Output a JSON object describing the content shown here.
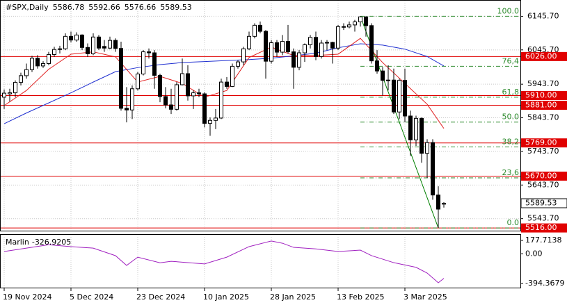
{
  "chart_data": {
    "type": "candlestick",
    "title": "#SPX,Daily",
    "categories": [
      "19 Nov 2024",
      null,
      null,
      null,
      null,
      null,
      null,
      null,
      null,
      null,
      null,
      null,
      "5 Dec 2024",
      null,
      null,
      null,
      null,
      null,
      null,
      null,
      null,
      null,
      null,
      null,
      "23 Dec 2024",
      null,
      null,
      null,
      null,
      null,
      null,
      null,
      null,
      null,
      null,
      null,
      "10 Jan 2025",
      null,
      null,
      null,
      null,
      null,
      null,
      null,
      null,
      null,
      null,
      null,
      "28 Jan 2025",
      null,
      null,
      null,
      null,
      null,
      null,
      null,
      null,
      null,
      null,
      null,
      "13 Feb 2025",
      null,
      null,
      null,
      null,
      null,
      null,
      null,
      null,
      null,
      null,
      null,
      "3 Mar 2025",
      null,
      null,
      null,
      null,
      null,
      null,
      null
    ],
    "candles": [
      [
        5905,
        5928,
        5870,
        5917
      ],
      [
        5915,
        5930,
        5892,
        5918
      ],
      [
        5918,
        5955,
        5905,
        5949
      ],
      [
        5949,
        5978,
        5940,
        5969
      ],
      [
        5969,
        6005,
        5960,
        5987
      ],
      [
        5987,
        6028,
        5980,
        6021
      ],
      [
        6021,
        6030,
        5990,
        5998
      ],
      [
        5998,
        6012,
        5992,
        6005
      ],
      [
        6005,
        6040,
        6000,
        6032
      ],
      [
        6032,
        6055,
        6025,
        6047
      ],
      [
        6047,
        6058,
        6035,
        6049
      ],
      [
        6049,
        6095,
        6045,
        6086
      ],
      [
        6086,
        6100,
        6068,
        6075
      ],
      [
        6075,
        6098,
        6070,
        6090
      ],
      [
        6090,
        6092,
        6045,
        6053
      ],
      [
        6053,
        6065,
        6025,
        6034
      ],
      [
        6034,
        6095,
        6030,
        6084
      ],
      [
        6084,
        6090,
        6045,
        6051
      ],
      [
        6056,
        6075,
        6040,
        6051
      ],
      [
        6051,
        6085,
        6048,
        6074
      ],
      [
        6074,
        6080,
        6040,
        6050
      ],
      [
        6050,
        6070,
        5865,
        5872
      ],
      [
        5872,
        5935,
        5830,
        5867
      ],
      [
        5867,
        5940,
        5840,
        5930
      ],
      [
        5930,
        5980,
        5925,
        5974
      ],
      [
        5974,
        6045,
        5970,
        6040
      ],
      [
        6040,
        6050,
        6020,
        6037
      ],
      [
        6037,
        6045,
        5930,
        5970
      ],
      [
        5970,
        5975,
        5890,
        5907
      ],
      [
        5907,
        5935,
        5872,
        5882
      ],
      [
        5882,
        5930,
        5855,
        5869
      ],
      [
        5869,
        5950,
        5865,
        5942
      ],
      [
        5942,
        6020,
        5940,
        5975
      ],
      [
        5975,
        6000,
        5895,
        5909
      ],
      [
        5909,
        5925,
        5870,
        5918
      ],
      [
        5918,
        5930,
        5905,
        5915
      ],
      [
        5915,
        5920,
        5815,
        5827
      ],
      [
        5827,
        5845,
        5790,
        5836
      ],
      [
        5836,
        5870,
        5810,
        5843
      ],
      [
        5843,
        5960,
        5840,
        5950
      ],
      [
        5950,
        5965,
        5930,
        5937
      ],
      [
        5937,
        6005,
        5935,
        5997
      ],
      [
        5997,
        6015,
        5990,
        6010
      ],
      [
        6010,
        6055,
        6000,
        6049
      ],
      [
        6049,
        6100,
        6045,
        6086
      ],
      [
        6086,
        6125,
        6080,
        6119
      ],
      [
        6119,
        6130,
        6095,
        6101
      ],
      [
        6101,
        6105,
        5960,
        6012
      ],
      [
        6012,
        6075,
        6005,
        6067
      ],
      [
        6067,
        6075,
        6025,
        6039
      ],
      [
        6039,
        6090,
        6030,
        6071
      ],
      [
        6071,
        6120,
        6035,
        6040
      ],
      [
        6040,
        6050,
        5930,
        5994
      ],
      [
        5994,
        6045,
        5985,
        6037
      ],
      [
        6037,
        6065,
        6010,
        6061
      ],
      [
        6061,
        6090,
        6050,
        6083
      ],
      [
        6083,
        6100,
        6015,
        6026
      ],
      [
        6026,
        6075,
        6020,
        6066
      ],
      [
        6066,
        6075,
        6045,
        6068
      ],
      [
        6068,
        6070,
        6005,
        6051
      ],
      [
        6051,
        6120,
        6045,
        6115
      ],
      [
        6115,
        6125,
        6105,
        6114
      ],
      [
        6114,
        6130,
        6110,
        6120
      ],
      [
        6120,
        6135,
        6100,
        6129
      ],
      [
        6129,
        6145.7,
        6115,
        6144
      ],
      [
        6144,
        6145,
        6085,
        6118
      ],
      [
        6118,
        6125,
        6005,
        6013
      ],
      [
        6013,
        6045,
        5975,
        5983
      ],
      [
        5983,
        5995,
        5910,
        5955
      ],
      [
        5955,
        6000,
        5925,
        5956
      ],
      [
        5956,
        5990,
        5855,
        5861
      ],
      [
        5861,
        5960,
        5840,
        5955
      ],
      [
        5955,
        5990,
        5830,
        5849
      ],
      [
        5849,
        5865,
        5730,
        5778
      ],
      [
        5778,
        5850,
        5760,
        5842
      ],
      [
        5842,
        5845,
        5710,
        5738
      ],
      [
        5738,
        5780,
        5665,
        5770
      ],
      [
        5770,
        5780,
        5600,
        5614
      ],
      [
        5614,
        5640,
        5516,
        5572
      ],
      [
        5586.78,
        5592.66,
        5576.66,
        5589.53
      ]
    ],
    "ylim": [
      5510,
      6190
    ],
    "yticks": [
      {
        "value": 6145.7,
        "label": "6145.70"
      },
      {
        "value": 6045.7,
        "label": "6045.70"
      },
      {
        "value": 5943.7,
        "label": "5943.70"
      },
      {
        "value": 5843.7,
        "label": "5843.70"
      },
      {
        "value": 5743.7,
        "label": "5743.70"
      },
      {
        "value": 5643.7,
        "label": "5643.70"
      },
      {
        "value": 5543.7,
        "label": "5543.70"
      }
    ],
    "grid": true,
    "levels": [
      {
        "value": 6026,
        "label": "6026.00"
      },
      {
        "value": 5910,
        "label": "5910.00"
      },
      {
        "value": 5881,
        "label": "5881.00"
      },
      {
        "value": 5769,
        "label": "5769.00"
      },
      {
        "value": 5670,
        "label": "5670.00"
      },
      {
        "value": 5516,
        "label": "5516.00"
      }
    ],
    "level_color": "#e00000",
    "fibonacci": {
      "color": "#2e8b2e",
      "start": 64,
      "levels": [
        {
          "label": "100.0",
          "value": 6145.7
        },
        {
          "label": "76,4",
          "value": 5997
        },
        {
          "label": "61,8",
          "value": 5905
        },
        {
          "label": "50.0",
          "value": 5831
        },
        {
          "label": "38,2",
          "value": 5757
        },
        {
          "label": "23,6",
          "value": 5665
        },
        {
          "label": "0.0",
          "value": 5516
        }
      ]
    },
    "trendline": {
      "color": "#008000",
      "x": [
        64,
        78
      ],
      "values": [
        6145.7,
        5516
      ]
    },
    "series": [
      {
        "color": "#1f2fd0",
        "x": [
          0,
          4,
          8,
          12,
          16,
          20,
          24,
          28,
          32,
          36,
          40,
          44,
          48,
          52,
          56,
          60,
          64,
          68,
          72,
          76,
          79
        ],
        "values": [
          5826,
          5858,
          5888,
          5918,
          5950,
          5981,
          5993,
          6002,
          6008,
          6011,
          6014,
          6017,
          6021,
          6028,
          6036,
          6052,
          6064,
          6060,
          6048,
          6026,
          5998
        ]
      },
      {
        "color": "#e02020",
        "x": [
          0,
          4,
          8,
          12,
          16,
          20,
          24,
          28,
          32,
          36,
          40,
          44,
          48,
          52,
          56,
          60,
          64,
          68,
          72,
          76,
          79
        ],
        "values": [
          5880,
          5925,
          5988,
          6033,
          6040,
          6025,
          5950,
          5967,
          5946,
          5905,
          5925,
          6023,
          6054,
          6029,
          6029,
          6033,
          6080,
          6008,
          5946,
          5884,
          5812
        ]
      }
    ],
    "indicator": {
      "name": "Marlin",
      "color": "#a020c0",
      "ylim": [
        -394.3679,
        177.7138
      ],
      "yticks": [
        177.7138,
        {
          "value": 0,
          "label": "0.00"
        },
        -394.3679
      ],
      "x": [
        0,
        4,
        8,
        12,
        16,
        20,
        22,
        24,
        28,
        30,
        36,
        40,
        44,
        48,
        50,
        52,
        56,
        60,
        64,
        66,
        70,
        74,
        76,
        78,
        79
      ],
      "values": [
        30,
        75,
        120,
        95,
        75,
        -25,
        -155,
        -45,
        -120,
        -100,
        -135,
        -45,
        95,
        170,
        140,
        85,
        65,
        30,
        48,
        -25,
        -118,
        -180,
        -256,
        -385,
        -326.9205
      ]
    }
  }
}
